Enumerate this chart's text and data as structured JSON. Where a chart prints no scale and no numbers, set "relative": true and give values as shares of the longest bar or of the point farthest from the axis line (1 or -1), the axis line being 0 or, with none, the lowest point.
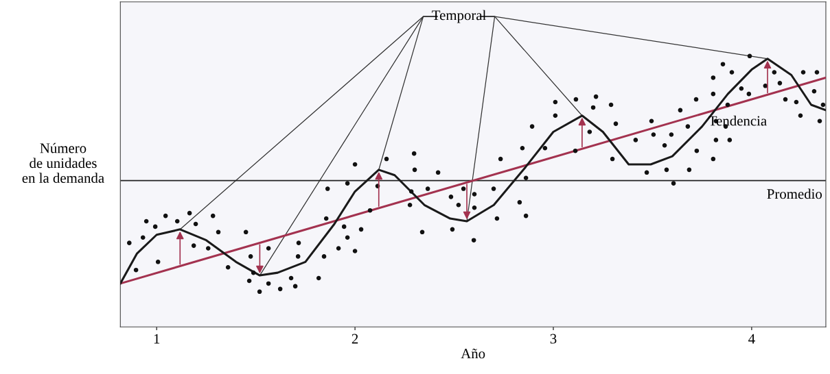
{
  "chart_data": {
    "type": "scatter",
    "relative": true,
    "xlabel": "Año",
    "ylabel": "Número\nde unidades\nen la demanda",
    "xlim": [
      0.817,
      4.374
    ],
    "xticks": [
      1,
      2,
      3,
      4
    ],
    "grid": false,
    "legend": false,
    "series": [
      {
        "marker": "circle",
        "color": "#111111",
        "x": [
          0.862,
          0.896,
          0.931,
          0.948,
          0.993,
          1.007,
          1.045,
          1.104,
          1.166,
          1.197,
          1.187,
          1.26,
          1.284,
          1.311,
          1.36,
          1.45,
          1.474,
          1.488,
          1.467,
          1.519,
          1.564,
          1.564,
          1.623,
          1.678,
          1.699,
          1.716,
          1.713,
          1.817,
          1.844,
          1.855,
          1.862,
          1.917,
          1.945,
          1.962,
          1.962,
          2.0,
          2.031,
          2.0,
          2.159,
          2.114,
          2.076,
          2.298,
          2.301,
          2.284,
          2.277,
          2.339,
          2.367,
          2.419,
          2.484,
          2.522,
          2.547,
          2.602,
          2.602,
          2.491,
          2.599,
          2.699,
          2.716,
          2.734,
          2.83,
          2.862,
          2.862,
          2.844,
          2.893,
          2.958,
          3.111,
          3.183,
          3.01,
          3.01,
          3.114,
          3.201,
          3.215,
          3.291,
          3.315,
          3.298,
          3.415,
          3.471,
          3.495,
          3.505,
          3.561,
          3.571,
          3.595,
          3.606,
          3.64,
          3.678,
          3.685,
          3.72,
          3.723,
          3.806,
          3.806,
          3.806,
          3.82,
          3.82,
          3.855,
          3.869,
          3.879,
          3.889,
          3.9,
          3.948,
          3.986,
          3.99,
          4.069,
          4.114,
          4.142,
          4.17,
          4.225,
          4.246,
          4.26,
          4.315,
          4.329,
          4.343,
          4.36
        ],
        "values": [
          0.31,
          0.21,
          0.33,
          0.39,
          0.37,
          0.24,
          0.41,
          0.39,
          0.42,
          0.38,
          0.3,
          0.29,
          0.41,
          0.35,
          0.22,
          0.35,
          0.26,
          0.2,
          0.17,
          0.13,
          0.16,
          0.29,
          0.14,
          0.18,
          0.15,
          0.31,
          0.26,
          0.18,
          0.26,
          0.4,
          0.51,
          0.29,
          0.37,
          0.33,
          0.53,
          0.28,
          0.36,
          0.6,
          0.62,
          0.52,
          0.43,
          0.64,
          0.58,
          0.5,
          0.45,
          0.35,
          0.51,
          0.57,
          0.48,
          0.45,
          0.51,
          0.49,
          0.44,
          0.36,
          0.32,
          0.51,
          0.4,
          0.62,
          0.46,
          0.41,
          0.55,
          0.66,
          0.74,
          0.66,
          0.65,
          0.72,
          0.83,
          0.78,
          0.84,
          0.81,
          0.85,
          0.82,
          0.75,
          0.62,
          0.69,
          0.57,
          0.76,
          0.71,
          0.67,
          0.58,
          0.71,
          0.53,
          0.8,
          0.74,
          0.58,
          0.84,
          0.65,
          0.92,
          0.86,
          0.62,
          0.76,
          0.69,
          0.97,
          0.74,
          0.82,
          0.69,
          0.94,
          0.88,
          0.86,
          1.0,
          0.89,
          0.94,
          0.9,
          0.84,
          0.83,
          0.78,
          0.94,
          0.87,
          0.94,
          0.76,
          0.82
        ]
      },
      {
        "type": "line",
        "color": "#a3324f",
        "x": [
          0.817,
          4.374
        ],
        "values": [
          0.16,
          0.92
        ]
      },
      {
        "type": "line",
        "color": "#1a1a1a",
        "x": [
          0.817,
          0.9,
          1.0,
          1.118,
          1.25,
          1.4,
          1.52,
          1.61,
          1.75,
          1.896,
          2.0,
          2.12,
          2.2,
          2.35,
          2.48,
          2.564,
          2.7,
          2.86,
          3.0,
          3.145,
          3.25,
          3.38,
          3.491,
          3.6,
          3.75,
          3.88,
          4.0,
          4.08,
          4.2,
          4.3,
          4.374
        ],
        "values": [
          0.16,
          0.27,
          0.34,
          0.36,
          0.32,
          0.24,
          0.19,
          0.2,
          0.24,
          0.38,
          0.5,
          0.58,
          0.56,
          0.45,
          0.4,
          0.39,
          0.45,
          0.59,
          0.72,
          0.78,
          0.72,
          0.6,
          0.6,
          0.63,
          0.74,
          0.86,
          0.95,
          0.99,
          0.93,
          0.82,
          0.8
        ]
      }
    ],
    "ref_lines": [
      {
        "axis": "y",
        "value": 0.54,
        "label": "Promedio",
        "color": "#222222"
      }
    ],
    "annotations": [
      "Temporal",
      "Tendencia"
    ]
  }
}
